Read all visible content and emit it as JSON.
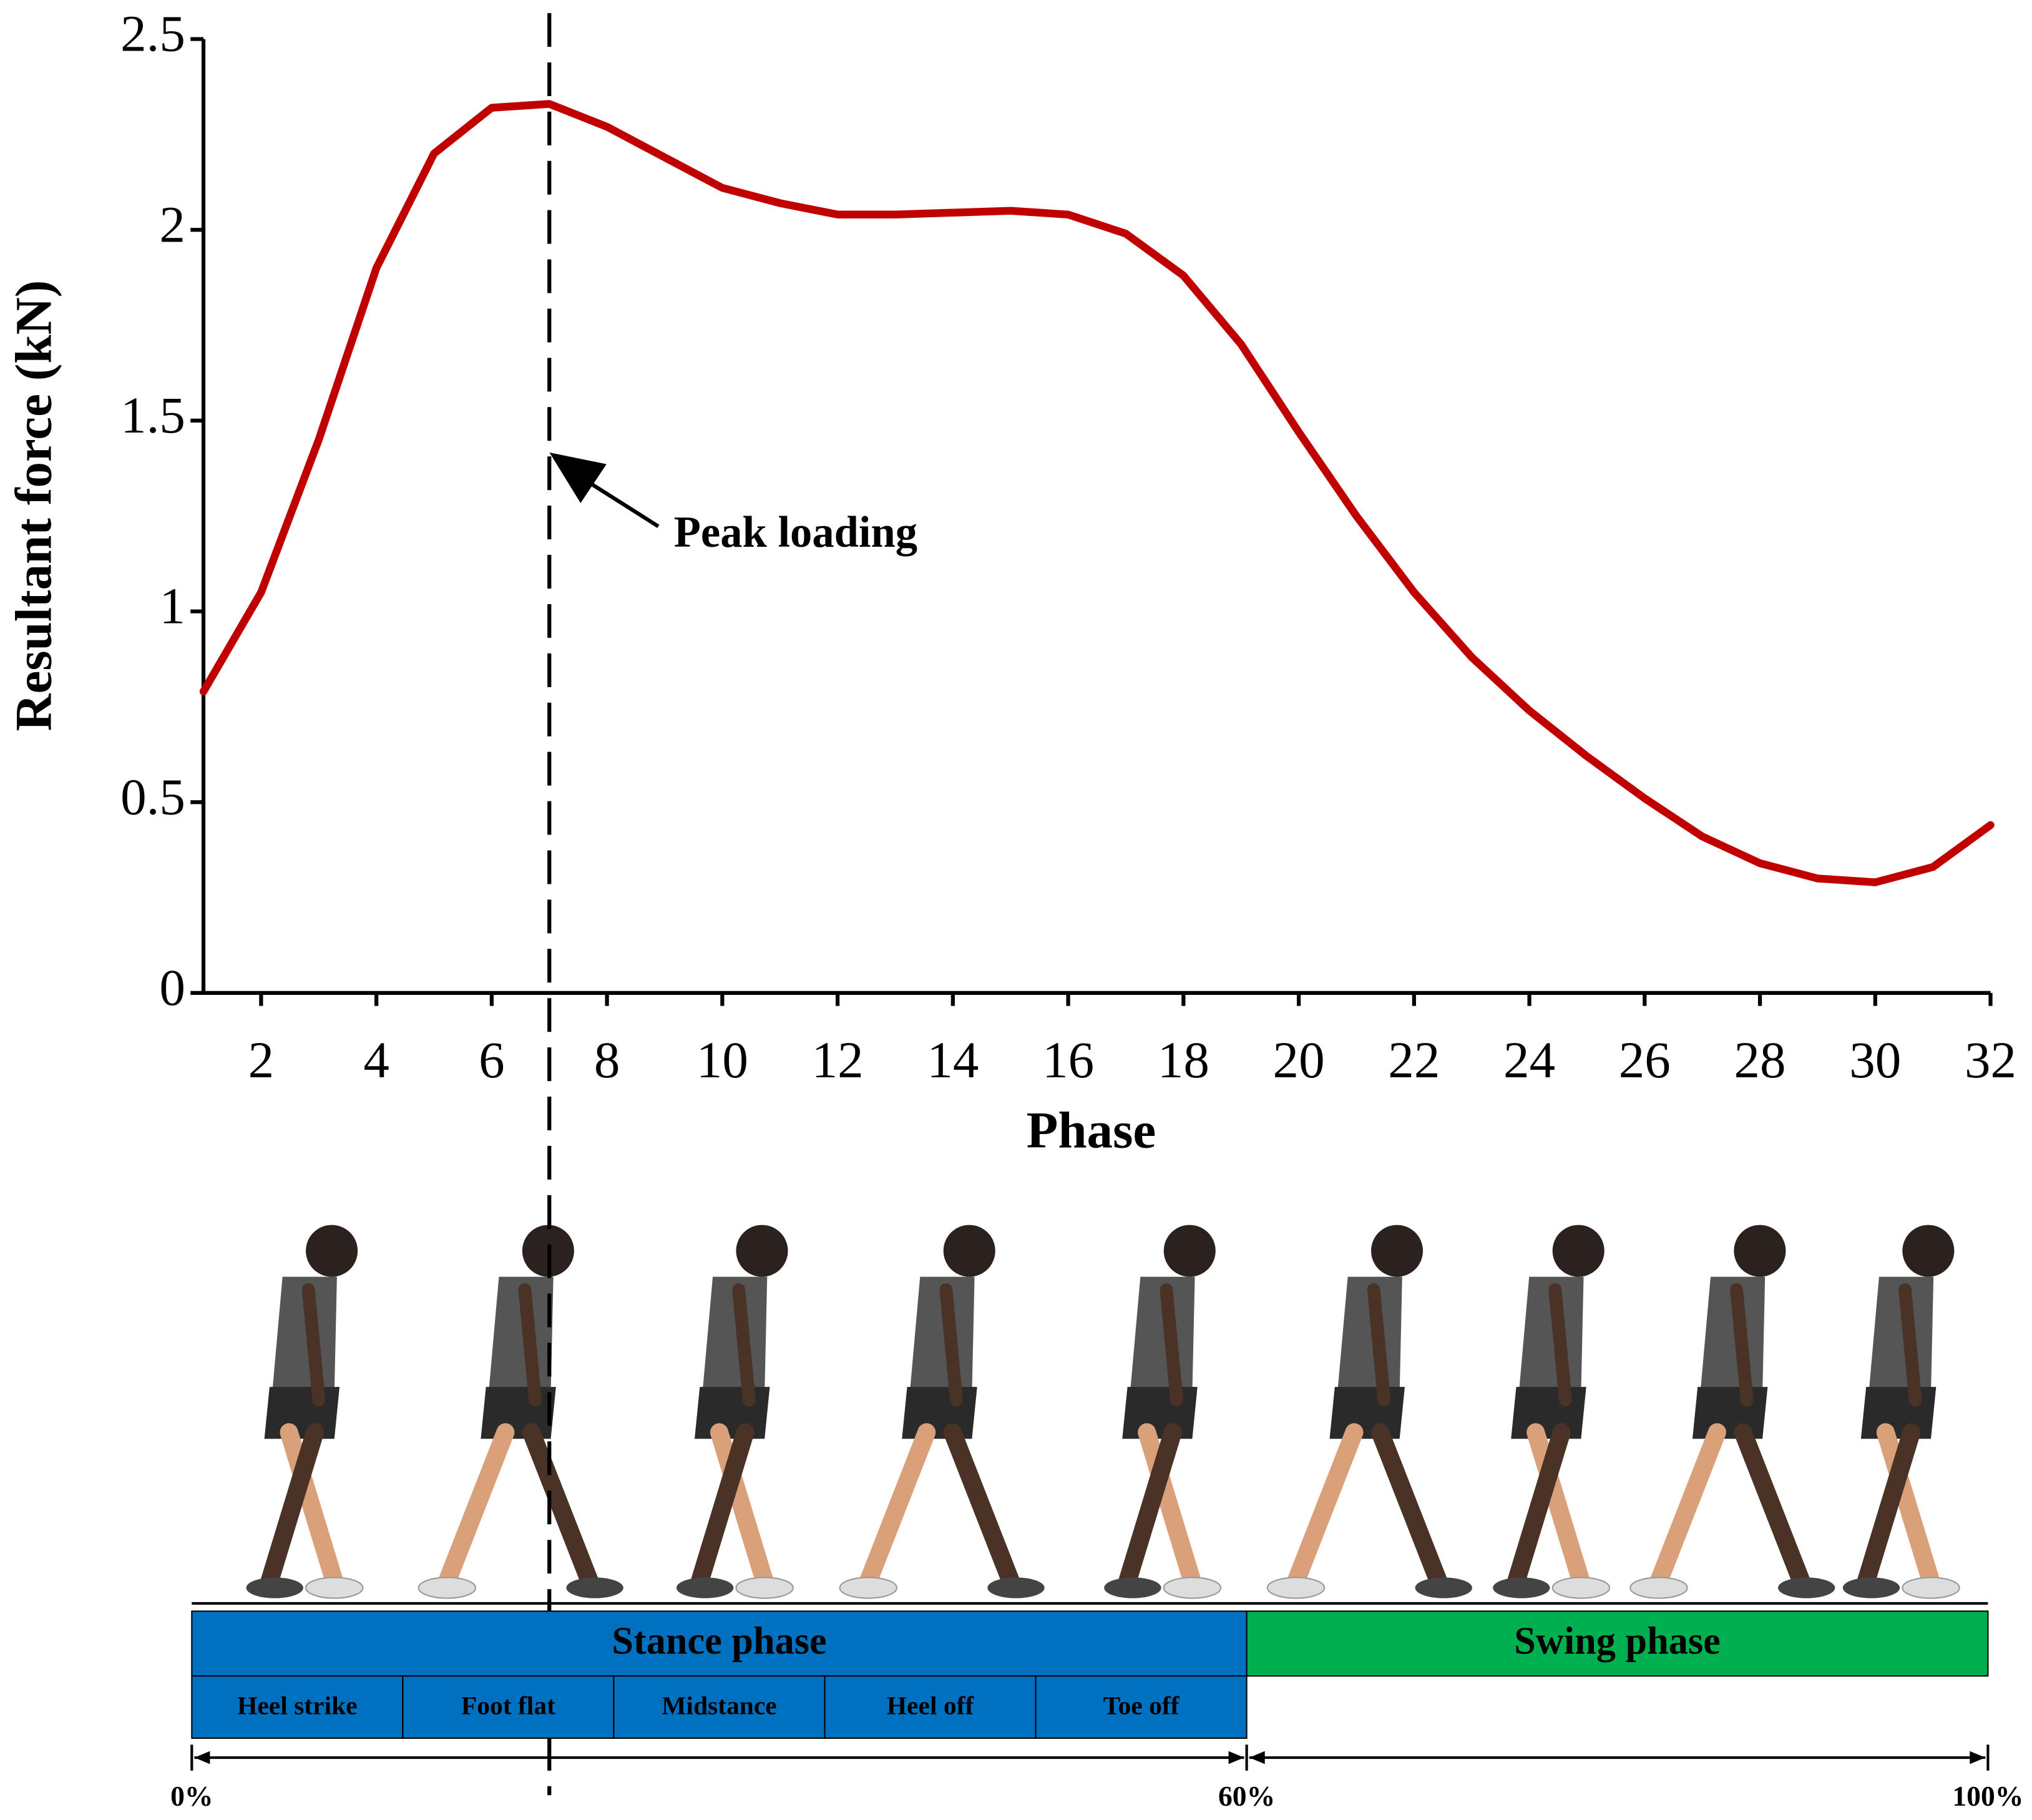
{
  "chart_data": {
    "type": "line",
    "y_label": "Resultant force (kN)",
    "x_label": "Phase",
    "annotation": "Peak loading",
    "peak_x": 7,
    "x": [
      1,
      2,
      3,
      4,
      5,
      6,
      7,
      8,
      9,
      10,
      11,
      12,
      13,
      14,
      15,
      16,
      17,
      18,
      19,
      20,
      21,
      22,
      23,
      24,
      25,
      26,
      27,
      28,
      29,
      30,
      31,
      32
    ],
    "values": [
      0.79,
      1.05,
      1.45,
      1.9,
      2.2,
      2.32,
      2.33,
      2.27,
      2.19,
      2.11,
      2.07,
      2.04,
      2.04,
      2.045,
      2.05,
      2.04,
      1.99,
      1.88,
      1.7,
      1.47,
      1.25,
      1.05,
      0.88,
      0.74,
      0.62,
      0.51,
      0.41,
      0.34,
      0.3,
      0.29,
      0.33,
      0.44
    ],
    "color": "#c00000",
    "xlim": [
      1,
      32
    ],
    "xticks": [
      2,
      4,
      6,
      8,
      10,
      12,
      14,
      16,
      18,
      20,
      22,
      24,
      26,
      28,
      30,
      32
    ],
    "ylim": [
      0,
      2.5
    ],
    "yticks": [
      0,
      0.5,
      1,
      1.5,
      2,
      2.5
    ]
  },
  "gait": {
    "stance": {
      "label": "Stance phase",
      "color": "#0070c0",
      "subphases": [
        "Heel strike",
        "Foot flat",
        "Midstance",
        "Heel off",
        "Toe off"
      ]
    },
    "swing": {
      "label": "Swing phase",
      "color": "#00b050"
    },
    "percent_labels": [
      "0%",
      "60%",
      "100%"
    ]
  }
}
